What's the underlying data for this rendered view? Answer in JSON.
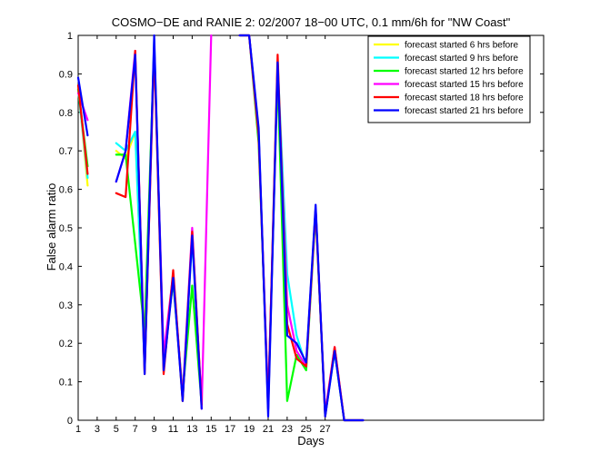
{
  "chart_data": {
    "type": "line",
    "title": "COSMO−DE and RANIE 2: 02/2007 18−00 UTC, 0.1 mm/6h for \"NW Coast\"",
    "xlabel": "Days",
    "ylabel": "False alarm ratio",
    "xlim": [
      1,
      50
    ],
    "ylim": [
      0,
      1
    ],
    "xticks": [
      1,
      3,
      5,
      7,
      9,
      11,
      13,
      15,
      17,
      19,
      21,
      23,
      25,
      27
    ],
    "xtick_labels": [
      "1",
      "3",
      "5",
      "7",
      "9",
      "11",
      "13",
      "15",
      "17",
      "19",
      "21",
      "23",
      "25",
      "27"
    ],
    "yticks": [
      0,
      0.1,
      0.2,
      0.3,
      0.4,
      0.5,
      0.6,
      0.7,
      0.8,
      0.9,
      1
    ],
    "ytick_labels": [
      "0",
      "0.1",
      "0.2",
      "0.3",
      "0.4",
      "0.5",
      "0.6",
      "0.7",
      "0.8",
      "0.9",
      "1"
    ],
    "grid": false,
    "legend_position": "top-right",
    "series": [
      {
        "name": "forecast started 6 hrs before",
        "color": "#ffff00",
        "points": [
          [
            1,
            0.87
          ],
          [
            2,
            0.61
          ],
          [
            null,
            null
          ],
          [
            5,
            0.7
          ],
          [
            6,
            0.68
          ],
          [
            7,
            0.75
          ],
          [
            8,
            0.15
          ],
          [
            9,
            0.98
          ],
          [
            10,
            0.14
          ],
          [
            11,
            0.38
          ],
          [
            12,
            0.05
          ],
          [
            13,
            0.48
          ],
          [
            14,
            0.04
          ]
        ]
      },
      {
        "name": "forecast started 9 hrs before",
        "color": "#00ffff",
        "points": [
          [
            1,
            0.86
          ],
          [
            2,
            0.63
          ],
          [
            null,
            null
          ],
          [
            5,
            0.72
          ],
          [
            6,
            0.7
          ],
          [
            7,
            0.75
          ],
          [
            8,
            0.14
          ],
          [
            9,
            0.99
          ],
          [
            10,
            0.15
          ],
          [
            11,
            0.37
          ],
          [
            12,
            0.06
          ],
          [
            13,
            0.47
          ],
          [
            14,
            0.04
          ],
          [
            null,
            null
          ],
          [
            18,
            1.0
          ],
          [
            19,
            1.0
          ],
          [
            20,
            0.75
          ],
          [
            21,
            0.03
          ],
          [
            22,
            0.93
          ],
          [
            23,
            0.38
          ],
          [
            24,
            0.22
          ],
          [
            25,
            0.14
          ],
          [
            26,
            0.55
          ],
          [
            27,
            0.01
          ],
          [
            28,
            0.18
          ],
          [
            29,
            0.0
          ],
          [
            31,
            0.0
          ]
        ]
      },
      {
        "name": "forecast started 12 hrs before",
        "color": "#00ff00",
        "points": [
          [
            1,
            0.86
          ],
          [
            2,
            0.66
          ],
          [
            null,
            null
          ],
          [
            5,
            0.69
          ],
          [
            6,
            0.69
          ],
          [
            7,
            0.46
          ],
          [
            8,
            0.23
          ],
          [
            9,
            0.97
          ],
          [
            10,
            0.16
          ],
          [
            11,
            0.36
          ],
          [
            12,
            0.07
          ],
          [
            13,
            0.35
          ],
          [
            14,
            0.04
          ],
          [
            null,
            null
          ],
          [
            18,
            1.0
          ],
          [
            19,
            1.0
          ],
          [
            20,
            0.72
          ],
          [
            21,
            0.05
          ],
          [
            22,
            0.9
          ],
          [
            23,
            0.05
          ],
          [
            24,
            0.17
          ],
          [
            25,
            0.13
          ],
          [
            26,
            0.54
          ],
          [
            27,
            0.02
          ],
          [
            28,
            0.18
          ],
          [
            29,
            0.0
          ],
          [
            31,
            0.0
          ]
        ]
      },
      {
        "name": "forecast started 15 hrs before",
        "color": "#ff00ff",
        "points": [
          [
            1,
            0.85
          ],
          [
            2,
            0.78
          ],
          [
            null,
            null
          ],
          [
            5,
            0.62
          ],
          [
            6,
            0.7
          ],
          [
            7,
            0.96
          ],
          [
            8,
            0.13
          ],
          [
            9,
            0.97
          ],
          [
            10,
            0.17
          ],
          [
            11,
            0.38
          ],
          [
            12,
            0.06
          ],
          [
            13,
            0.5
          ],
          [
            14,
            0.03
          ],
          [
            15,
            1.0
          ],
          [
            null,
            null
          ],
          [
            18,
            1.0
          ],
          [
            19,
            1.0
          ],
          [
            20,
            0.74
          ],
          [
            21,
            0.05
          ],
          [
            22,
            0.92
          ],
          [
            23,
            0.3
          ],
          [
            24,
            0.18
          ],
          [
            25,
            0.14
          ],
          [
            26,
            0.55
          ],
          [
            27,
            0.02
          ],
          [
            28,
            0.19
          ],
          [
            29,
            0.0
          ],
          [
            31,
            0.0
          ]
        ]
      },
      {
        "name": "forecast started 18 hrs before",
        "color": "#ff0000",
        "points": [
          [
            1,
            0.87
          ],
          [
            2,
            0.64
          ],
          [
            null,
            null
          ],
          [
            5,
            0.59
          ],
          [
            6,
            0.58
          ],
          [
            7,
            0.96
          ],
          [
            8,
            0.12
          ],
          [
            9,
            0.97
          ],
          [
            10,
            0.12
          ],
          [
            11,
            0.39
          ],
          [
            12,
            0.05
          ],
          [
            13,
            0.49
          ],
          [
            14,
            0.04
          ],
          [
            null,
            null
          ],
          [
            18,
            1.0
          ],
          [
            19,
            1.0
          ],
          [
            20,
            0.74
          ],
          [
            21,
            0.03
          ],
          [
            22,
            0.95
          ],
          [
            23,
            0.25
          ],
          [
            24,
            0.16
          ],
          [
            25,
            0.14
          ],
          [
            26,
            0.55
          ],
          [
            27,
            0.01
          ],
          [
            28,
            0.19
          ],
          [
            29,
            0.0
          ],
          [
            31,
            0.0
          ]
        ]
      },
      {
        "name": "forecast started 21 hrs before",
        "color": "#0000ff",
        "points": [
          [
            1,
            0.89
          ],
          [
            2,
            0.74
          ],
          [
            null,
            null
          ],
          [
            5,
            0.62
          ],
          [
            6,
            0.7
          ],
          [
            7,
            0.95
          ],
          [
            8,
            0.12
          ],
          [
            9,
            1.0
          ],
          [
            10,
            0.13
          ],
          [
            11,
            0.37
          ],
          [
            12,
            0.05
          ],
          [
            13,
            0.48
          ],
          [
            14,
            0.03
          ],
          [
            null,
            null
          ],
          [
            18,
            1.0
          ],
          [
            19,
            1.0
          ],
          [
            20,
            0.76
          ],
          [
            21,
            0.01
          ],
          [
            22,
            0.93
          ],
          [
            23,
            0.22
          ],
          [
            24,
            0.2
          ],
          [
            25,
            0.15
          ],
          [
            26,
            0.56
          ],
          [
            27,
            0.01
          ],
          [
            28,
            0.18
          ],
          [
            29,
            0.0
          ],
          [
            31,
            0.0
          ]
        ]
      }
    ]
  }
}
